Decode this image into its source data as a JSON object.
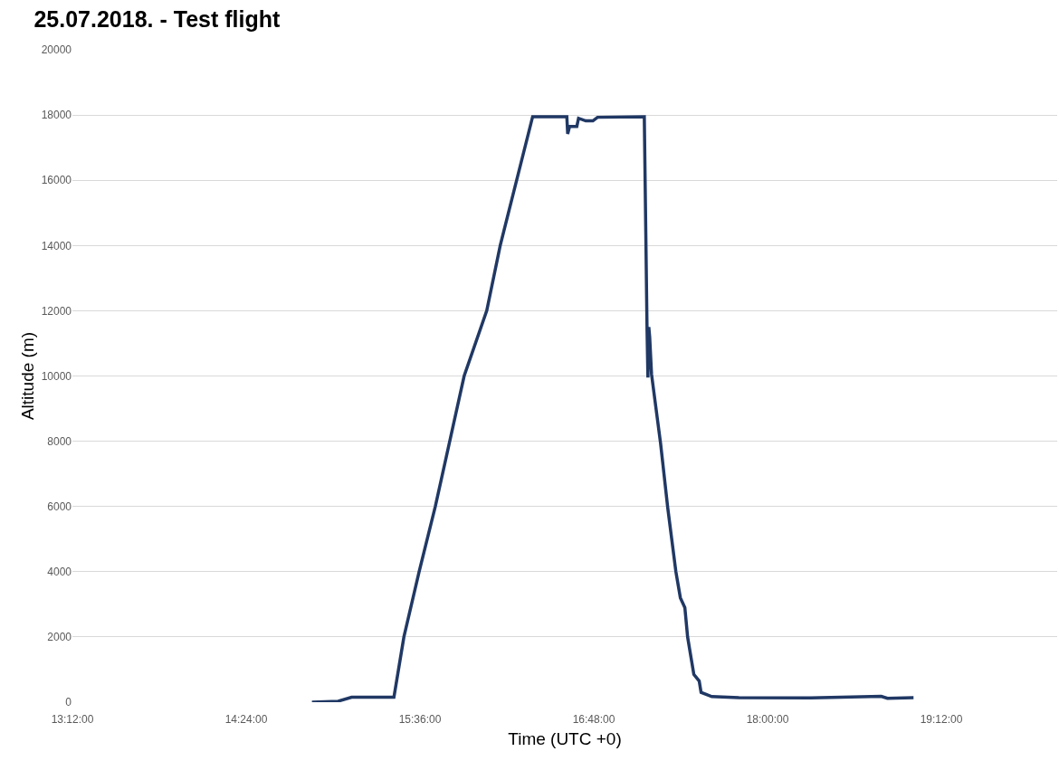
{
  "chart_data": {
    "type": "line",
    "title": "25.07.2018. - Test flight",
    "xlabel": "Time (UTC +0)",
    "ylabel": "Altitude (m)",
    "xlim": [
      13.2,
      20.0
    ],
    "xticks": [
      {
        "value": 13.2,
        "label": "13:12:00"
      },
      {
        "value": 14.4,
        "label": "14:24:00"
      },
      {
        "value": 15.6,
        "label": "15:36:00"
      },
      {
        "value": 16.8,
        "label": "16:48:00"
      },
      {
        "value": 18.0,
        "label": "18:00:00"
      },
      {
        "value": 19.2,
        "label": "19:12:00"
      }
    ],
    "ylim": [
      0,
      20000
    ],
    "yticks": [
      0,
      2000,
      4000,
      6000,
      8000,
      10000,
      12000,
      14000,
      16000,
      18000,
      20000
    ],
    "grid": "y",
    "marker": "none",
    "line_style": "solid",
    "series": [
      {
        "color": "#203864",
        "x": [
          14.854,
          15.035,
          15.128,
          15.42,
          15.489,
          15.594,
          15.706,
          15.905,
          16.061,
          16.154,
          16.378,
          16.614,
          16.62,
          16.633,
          16.683,
          16.695,
          16.745,
          16.794,
          16.826,
          17.149,
          17.168,
          17.174,
          17.18,
          17.186,
          17.199,
          17.261,
          17.311,
          17.367,
          17.398,
          17.429,
          17.448,
          17.491,
          17.528,
          17.541,
          17.615,
          17.802,
          18.299,
          18.785,
          18.828,
          19.008
        ],
        "values": [
          0,
          30,
          150,
          150,
          2000,
          4000,
          6000,
          10000,
          12000,
          14000,
          17950,
          17950,
          17420,
          17650,
          17650,
          17900,
          17820,
          17820,
          17930,
          17950,
          11400,
          9950,
          11500,
          11200,
          10050,
          7950,
          5950,
          4000,
          3200,
          2900,
          2000,
          850,
          650,
          300,
          170,
          140,
          130,
          180,
          120,
          140
        ]
      }
    ]
  }
}
